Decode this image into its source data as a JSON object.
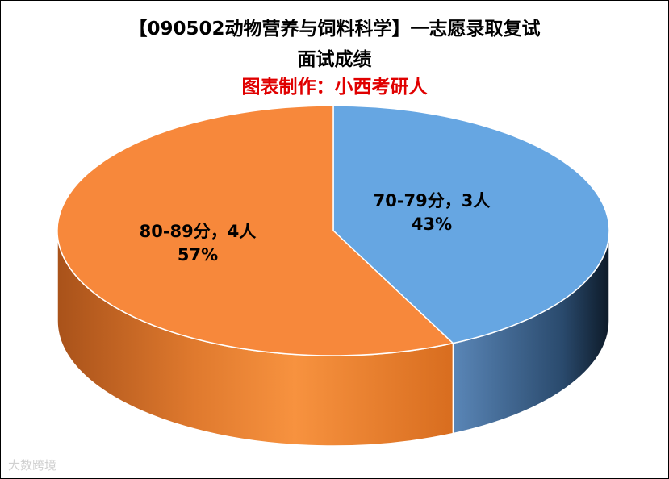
{
  "chart_data": {
    "type": "pie",
    "title": "【090502动物营养与饲料科学】一志愿录取复试",
    "title_line2": "面试成绩",
    "subtitle": "图表制作：小西考研人",
    "slices": [
      {
        "label": "70-79分，3人",
        "value": 3,
        "percent": "43%",
        "color": "#66a6e2"
      },
      {
        "label": "80-89分，4人",
        "value": 4,
        "percent": "57%",
        "color": "#f7883b"
      }
    ],
    "colors": {
      "subtitle": "#e00000",
      "side_blue": "#2a4a6d",
      "side_orange": "#d86d1f"
    }
  },
  "watermark": "大数跨境"
}
